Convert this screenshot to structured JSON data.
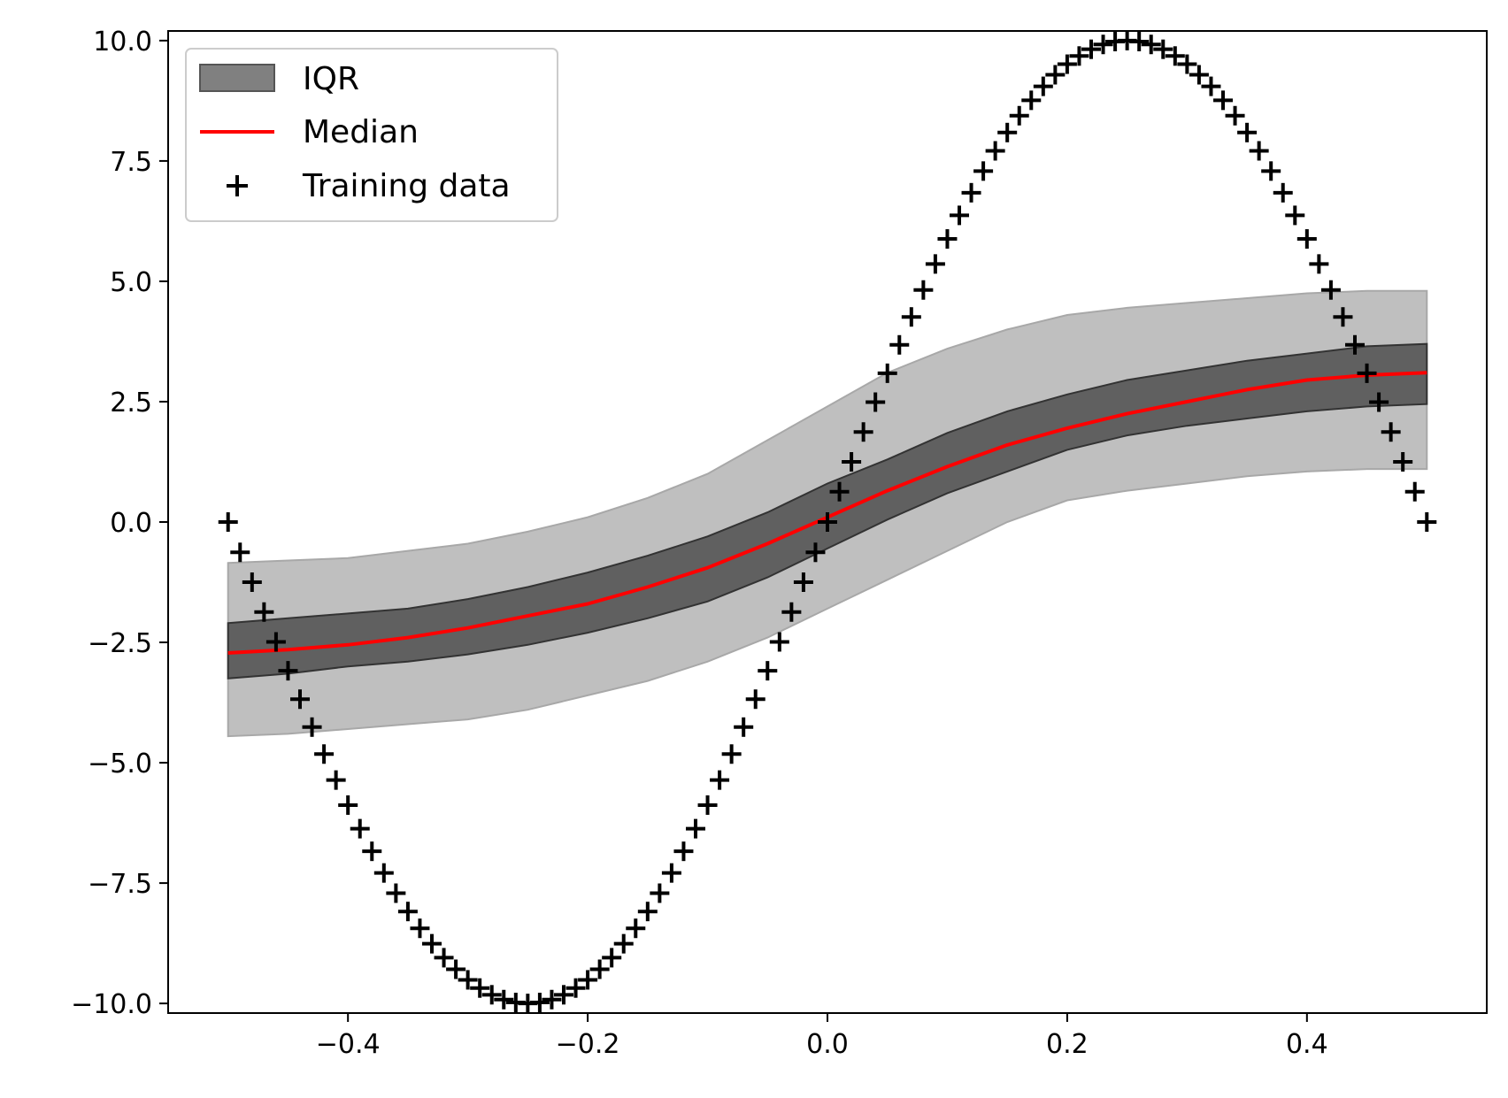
{
  "chart_data": {
    "type": "line",
    "title": "",
    "xlabel": "",
    "ylabel": "",
    "xlim": [
      -0.55,
      0.55
    ],
    "ylim": [
      -10.2,
      10.2
    ],
    "grid": false,
    "legend_position": "top-left",
    "x_ticks": [
      -0.4,
      -0.2,
      0.0,
      0.2,
      0.4
    ],
    "x_tick_labels": [
      "−0.4",
      "−0.2",
      "0.0",
      "0.2",
      "0.4"
    ],
    "y_ticks": [
      -10,
      -7.5,
      -5,
      -2.5,
      0,
      2.5,
      5,
      7.5,
      10
    ],
    "y_tick_labels": [
      "−10.0",
      "−7.5",
      "−5.0",
      "−2.5",
      "0.0",
      "2.5",
      "5.0",
      "7.5",
      "10.0"
    ],
    "legend": [
      {
        "label": "IQR",
        "kind": "patch",
        "color": "#606060"
      },
      {
        "label": "Median",
        "kind": "line",
        "color": "#ff0000"
      },
      {
        "label": "Training data",
        "kind": "marker",
        "color": "#000000"
      }
    ],
    "bands": {
      "x": [
        -0.5,
        -0.45,
        -0.4,
        -0.35,
        -0.3,
        -0.25,
        -0.2,
        -0.15,
        -0.1,
        -0.05,
        0.0,
        0.05,
        0.1,
        0.15,
        0.2,
        0.25,
        0.3,
        0.35,
        0.4,
        0.45,
        0.5
      ],
      "outer_upper": [
        -0.85,
        -0.8,
        -0.75,
        -0.6,
        -0.45,
        -0.2,
        0.1,
        0.5,
        1.0,
        1.7,
        2.4,
        3.1,
        3.6,
        4.0,
        4.3,
        4.45,
        4.55,
        4.65,
        4.75,
        4.8,
        4.8
      ],
      "outer_lower": [
        -4.45,
        -4.4,
        -4.3,
        -4.2,
        -4.1,
        -3.9,
        -3.6,
        -3.3,
        -2.9,
        -2.4,
        -1.8,
        -1.2,
        -0.6,
        0.0,
        0.45,
        0.65,
        0.8,
        0.95,
        1.05,
        1.1,
        1.1
      ],
      "iqr_upper": [
        -2.1,
        -2.0,
        -1.9,
        -1.8,
        -1.6,
        -1.35,
        -1.05,
        -0.7,
        -0.3,
        0.2,
        0.8,
        1.3,
        1.85,
        2.3,
        2.65,
        2.95,
        3.15,
        3.35,
        3.5,
        3.65,
        3.7
      ],
      "iqr_lower": [
        -3.25,
        -3.15,
        -3.0,
        -2.9,
        -2.75,
        -2.55,
        -2.3,
        -2.0,
        -1.65,
        -1.15,
        -0.55,
        0.05,
        0.6,
        1.05,
        1.5,
        1.8,
        2.0,
        2.15,
        2.3,
        2.4,
        2.45
      ],
      "median": [
        -2.72,
        -2.65,
        -2.55,
        -2.4,
        -2.2,
        -1.95,
        -1.7,
        -1.35,
        -0.95,
        -0.45,
        0.1,
        0.65,
        1.15,
        1.6,
        1.95,
        2.25,
        2.5,
        2.75,
        2.95,
        3.05,
        3.1
      ]
    },
    "training_data": {
      "x": [
        -0.5,
        -0.49,
        -0.48,
        -0.47,
        -0.46,
        -0.45,
        -0.44,
        -0.43,
        -0.42,
        -0.41,
        -0.4,
        -0.39,
        -0.38,
        -0.37,
        -0.36,
        -0.35,
        -0.34,
        -0.33,
        -0.32,
        -0.31,
        -0.3,
        -0.29,
        -0.28,
        -0.27,
        -0.26,
        -0.25,
        -0.24,
        -0.23,
        -0.22,
        -0.21,
        -0.2,
        -0.19,
        -0.18,
        -0.17,
        -0.16,
        -0.15,
        -0.14,
        -0.13,
        -0.12,
        -0.11,
        -0.1,
        -0.09,
        -0.08,
        -0.07,
        -0.06,
        -0.05,
        -0.04,
        -0.03,
        -0.02,
        -0.01,
        0.0,
        0.01,
        0.02,
        0.03,
        0.04,
        0.05,
        0.06,
        0.07,
        0.08,
        0.09,
        0.1,
        0.11,
        0.12,
        0.13,
        0.14,
        0.15,
        0.16,
        0.17,
        0.18,
        0.19,
        0.2,
        0.21,
        0.22,
        0.23,
        0.24,
        0.25,
        0.26,
        0.27,
        0.28,
        0.29,
        0.3,
        0.31,
        0.32,
        0.33,
        0.34,
        0.35,
        0.36,
        0.37,
        0.38,
        0.39,
        0.4,
        0.41,
        0.42,
        0.43,
        0.44,
        0.45,
        0.46,
        0.47,
        0.48,
        0.49,
        0.5
      ],
      "y": [
        0.0,
        -0.63,
        -1.25,
        -1.87,
        -2.49,
        -3.09,
        -3.68,
        -4.26,
        -4.82,
        -5.36,
        -5.88,
        -6.37,
        -6.84,
        -7.29,
        -7.71,
        -8.09,
        -8.44,
        -8.76,
        -9.05,
        -9.29,
        -9.51,
        -9.68,
        -9.82,
        -9.92,
        -9.98,
        -10.0,
        -9.98,
        -9.92,
        -9.82,
        -9.68,
        -9.51,
        -9.29,
        -9.05,
        -8.76,
        -8.44,
        -8.09,
        -7.71,
        -7.29,
        -6.84,
        -6.37,
        -5.88,
        -5.36,
        -4.82,
        -4.26,
        -3.68,
        -3.09,
        -2.49,
        -1.87,
        -1.25,
        -0.63,
        0.0,
        0.63,
        1.25,
        1.87,
        2.49,
        3.09,
        3.68,
        4.26,
        4.82,
        5.36,
        5.88,
        6.37,
        6.84,
        7.29,
        7.71,
        8.09,
        8.44,
        8.76,
        9.05,
        9.29,
        9.51,
        9.68,
        9.82,
        9.92,
        9.98,
        10.0,
        9.98,
        9.92,
        9.82,
        9.68,
        9.51,
        9.29,
        9.05,
        8.76,
        8.44,
        8.09,
        7.71,
        7.29,
        6.84,
        6.37,
        5.88,
        5.36,
        4.82,
        4.26,
        3.68,
        3.09,
        2.49,
        1.87,
        1.25,
        0.63,
        0.0
      ]
    },
    "colors": {
      "outer_band": "#bfbfbf",
      "iqr_band": "#606060",
      "median": "#ff0000",
      "markers": "#000000"
    }
  }
}
